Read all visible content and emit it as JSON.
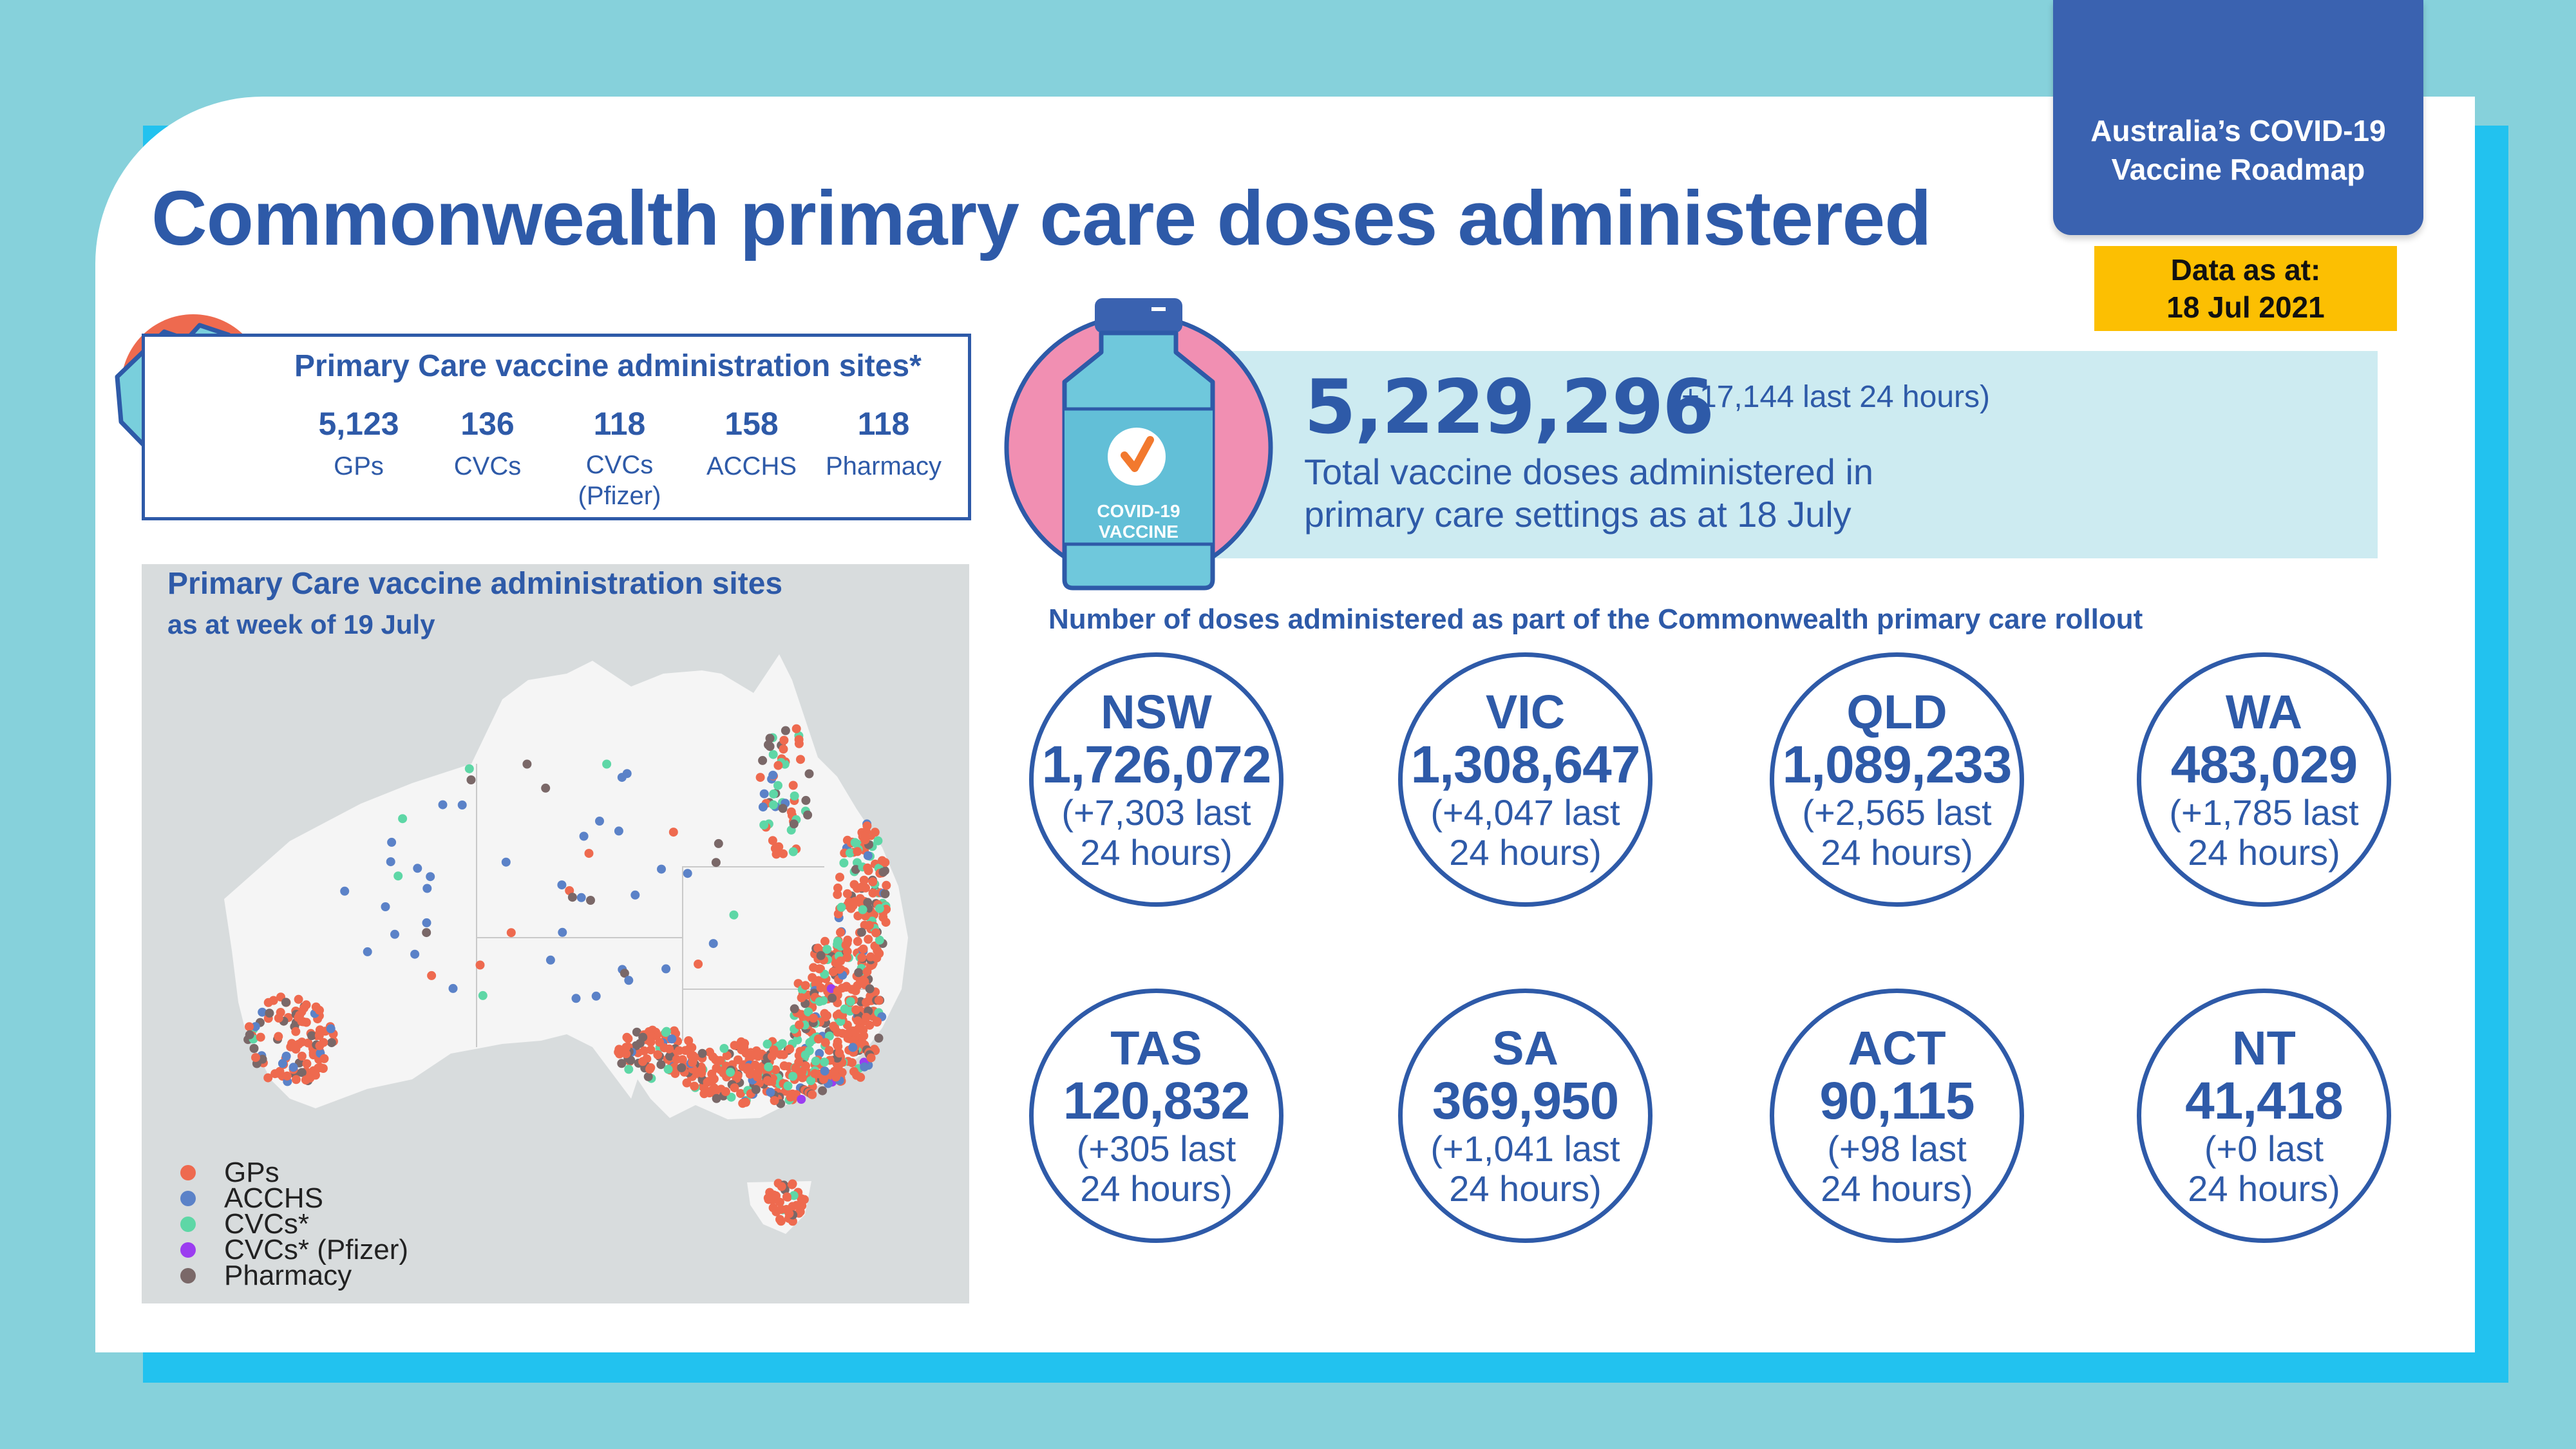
{
  "roadmap": {
    "line1": "Australia’s COVID-19",
    "line2": "Vaccine Roadmap"
  },
  "data_as_at": {
    "line1": "Data as at:",
    "line2": "18 Jul 2021"
  },
  "title": "Commonwealth primary care doses administered",
  "sites": {
    "title": "Primary Care vaccine administration sites*",
    "stats": [
      {
        "value": "5,123",
        "label": "GPs",
        "label2": ""
      },
      {
        "value": "136",
        "label": "CVCs",
        "label2": ""
      },
      {
        "value": "118",
        "label": "CVCs",
        "label2": "(Pfizer)"
      },
      {
        "value": "158",
        "label": "ACCHS",
        "label2": ""
      },
      {
        "value": "118",
        "label": "Pharmacy",
        "label2": ""
      }
    ]
  },
  "map": {
    "title": "Primary Care vaccine administration sites",
    "subtitle": "as at week of 19 July",
    "legend": [
      {
        "label": "GPs",
        "color": "#ee6a4f"
      },
      {
        "label": "ACCHS",
        "color": "#5b82c8"
      },
      {
        "label": "CVCs*",
        "color": "#5ed7a6"
      },
      {
        "label": "CVCs* (Pfizer)",
        "color": "#9b3df0"
      },
      {
        "label": "Pharmacy",
        "color": "#7a6868"
      }
    ]
  },
  "vial": {
    "line1": "COVID-19",
    "line2": "VACCINE"
  },
  "total": {
    "value": "5,229,296",
    "delta": "(+17,144 last 24 hours)",
    "desc1": "Total vaccine doses administered in",
    "desc2": "primary care settings as at 18 July"
  },
  "rollout_subtitle": "Number of doses administered as part of the Commonwealth primary care rollout",
  "states": [
    {
      "name": "NSW",
      "value": "1,726,072",
      "delta1": "(+7,303 last",
      "delta2": "24 hours)"
    },
    {
      "name": "VIC",
      "value": "1,308,647",
      "delta1": "(+4,047 last",
      "delta2": "24 hours)"
    },
    {
      "name": "QLD",
      "value": "1,089,233",
      "delta1": "(+2,565 last",
      "delta2": "24 hours)"
    },
    {
      "name": "WA",
      "value": "483,029",
      "delta1": "(+1,785 last",
      "delta2": "24 hours)"
    },
    {
      "name": "TAS",
      "value": "120,832",
      "delta1": "(+305 last",
      "delta2": "24 hours)"
    },
    {
      "name": "SA",
      "value": "369,950",
      "delta1": "(+1,041 last",
      "delta2": "24 hours)"
    },
    {
      "name": "ACT",
      "value": "90,115",
      "delta1": "(+98 last",
      "delta2": "24 hours)"
    },
    {
      "name": "NT",
      "value": "41,418",
      "delta1": "(+0 last",
      "delta2": "24 hours)"
    }
  ]
}
